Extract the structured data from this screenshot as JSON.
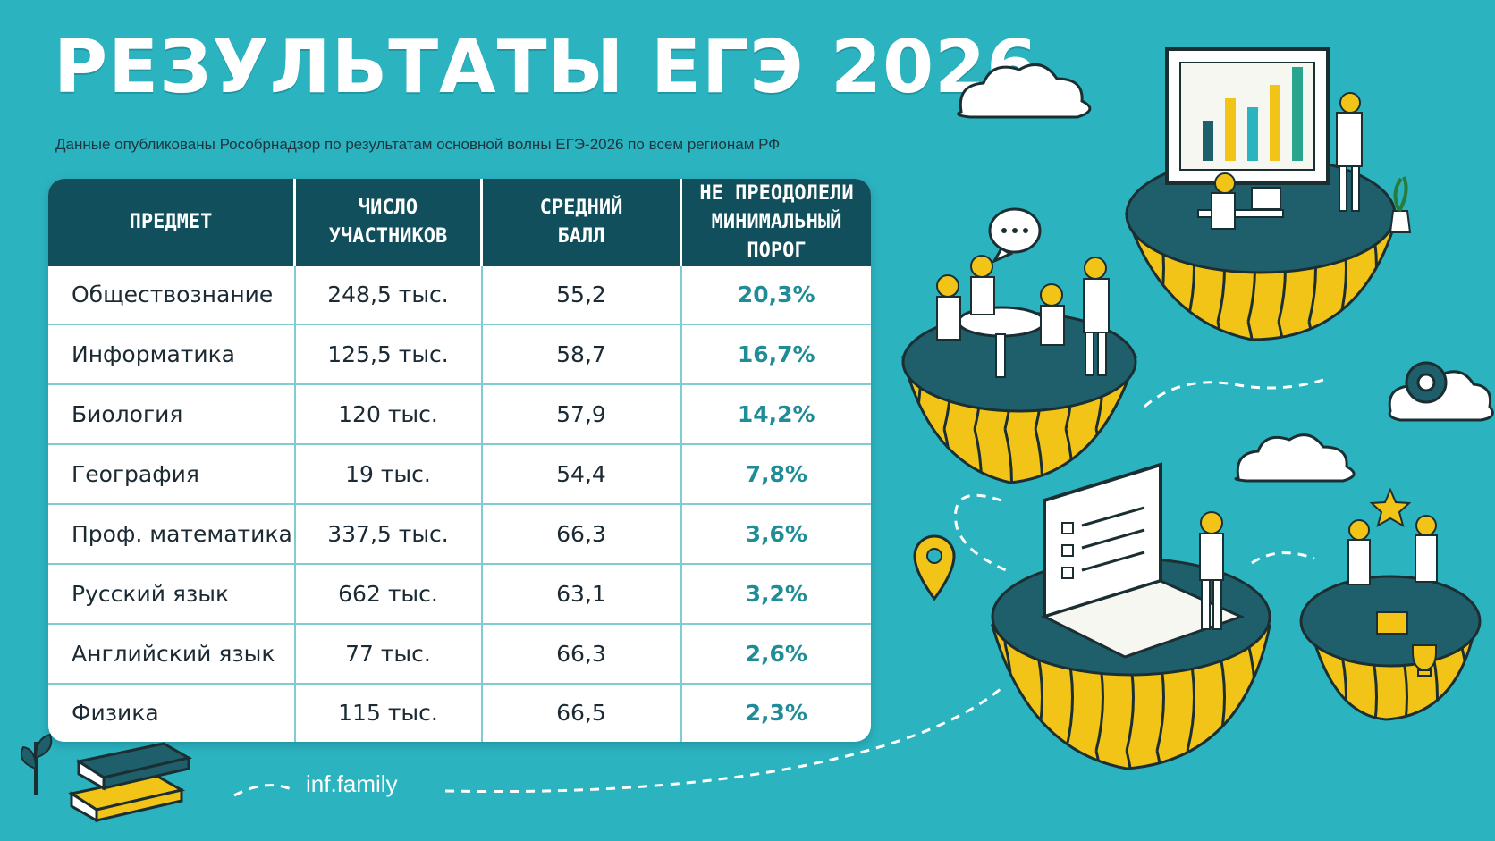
{
  "title": "РЕЗУЛЬТАТЫ ЕГЭ 2026",
  "subtitle": "Данные опубликованы Рособрнадзор по результатам основной волны ЕГЭ-2026 по всем регионам РФ",
  "table": {
    "headers": [
      [
        "ПРЕДМЕТ"
      ],
      [
        "ЧИСЛО",
        "УЧАСТНИКОВ"
      ],
      [
        "СРЕДНИЙ",
        "БАЛЛ"
      ],
      [
        "НЕ ПРЕОДОЛЕЛИ",
        "МИНИМАЛЬНЫЙ ПОРОГ"
      ]
    ],
    "rows": [
      {
        "subject": "Обществознание",
        "participants": "248,5 тыс.",
        "avg": "55,2",
        "failed": "20,3%"
      },
      {
        "subject": "Информатика",
        "participants": "125,5 тыс.",
        "avg": "58,7",
        "failed": "16,7%"
      },
      {
        "subject": "Биология",
        "participants": "120 тыс.",
        "avg": "57,9",
        "failed": "14,2%"
      },
      {
        "subject": "География",
        "participants": "19 тыс.",
        "avg": "54,4",
        "failed": "7,8%"
      },
      {
        "subject": "Проф. математика",
        "participants": "337,5 тыс.",
        "avg": "66,3",
        "failed": "3,6%"
      },
      {
        "subject": "Русский язык",
        "participants": "662 тыс.",
        "avg": "63,1",
        "failed": "3,2%"
      },
      {
        "subject": "Английский язык",
        "participants": "77 тыс.",
        "avg": "66,3",
        "failed": "2,6%"
      },
      {
        "subject": "Физика",
        "participants": "115 тыс.",
        "avg": "66,5",
        "failed": "2,3%"
      }
    ]
  },
  "footer": {
    "site": "inf.family"
  },
  "colors": {
    "background": "#2cb3c0",
    "header": "#114f5c",
    "accent": "#1f8c97",
    "island_yellow": "#f2c418",
    "island_top": "#1e5f6b"
  },
  "icons": [
    "cloud-icon",
    "presentation-board-icon",
    "speech-bubble-icon",
    "gear-icon",
    "location-pin-icon",
    "laptop-checklist-icon",
    "star-icon",
    "trophy-icon",
    "books-icon",
    "plant-icon"
  ]
}
